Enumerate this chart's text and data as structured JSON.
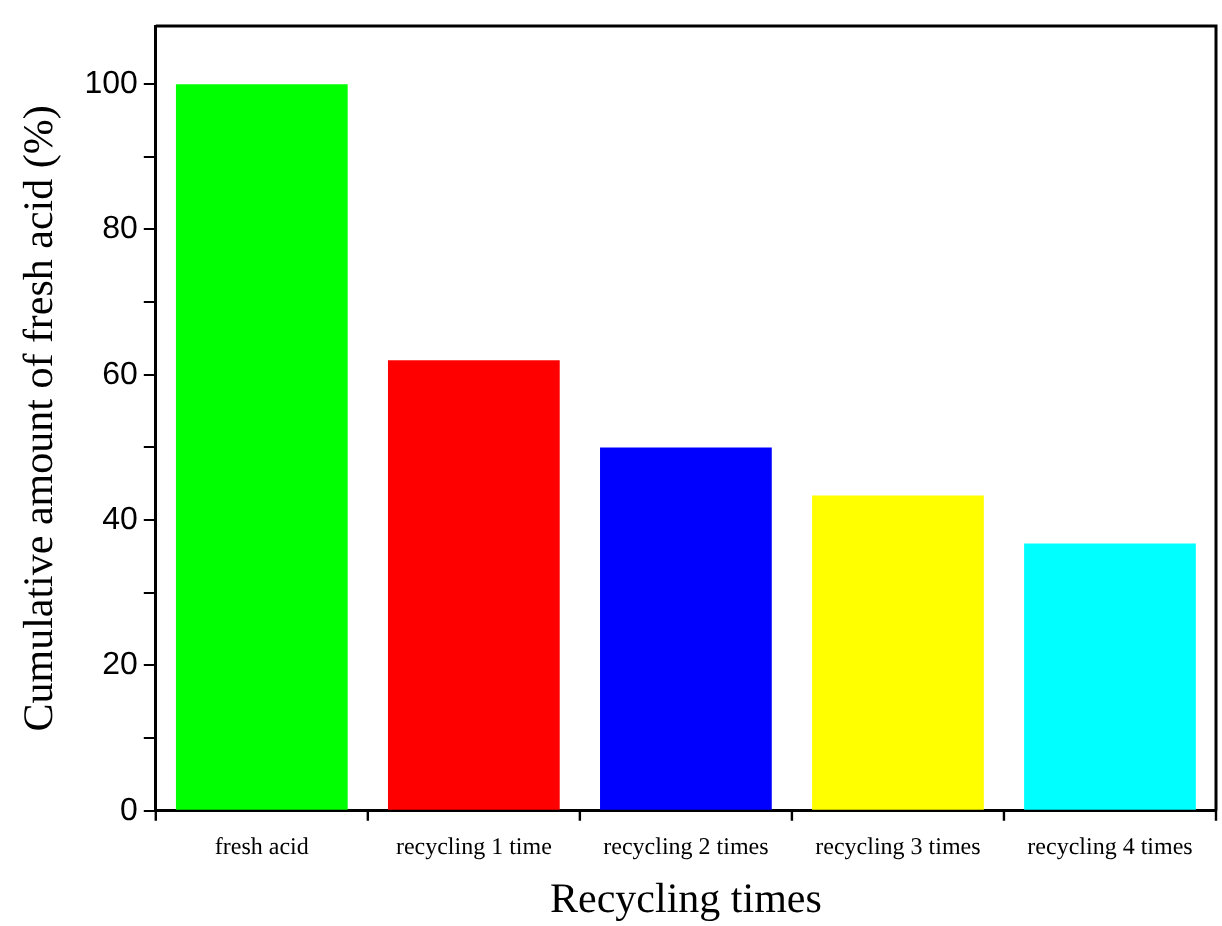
{
  "chart_data": {
    "type": "bar",
    "xlabel": "Recycling times",
    "ylabel": "Cumulative amount of fresh acid (%)",
    "categories": [
      "fresh acid",
      "recycling 1 time",
      "recycling 2 times",
      "recycling 3 times",
      "recycling 4 times"
    ],
    "values": [
      100,
      62,
      50,
      43.4,
      36.8
    ],
    "colors": [
      "#00ff00",
      "#ff0000",
      "#0000ff",
      "#ffff00",
      "#00ffff"
    ],
    "ylim": [
      0,
      108
    ],
    "yticks": [
      0,
      {
        "value": 10,
        "label": null
      },
      20,
      {
        "value": 30,
        "label": null
      },
      40,
      {
        "value": 50,
        "label": null
      },
      60,
      {
        "value": 70,
        "label": null
      },
      80,
      {
        "value": 90,
        "label": null
      },
      100
    ],
    "grid": false,
    "legend": false
  }
}
